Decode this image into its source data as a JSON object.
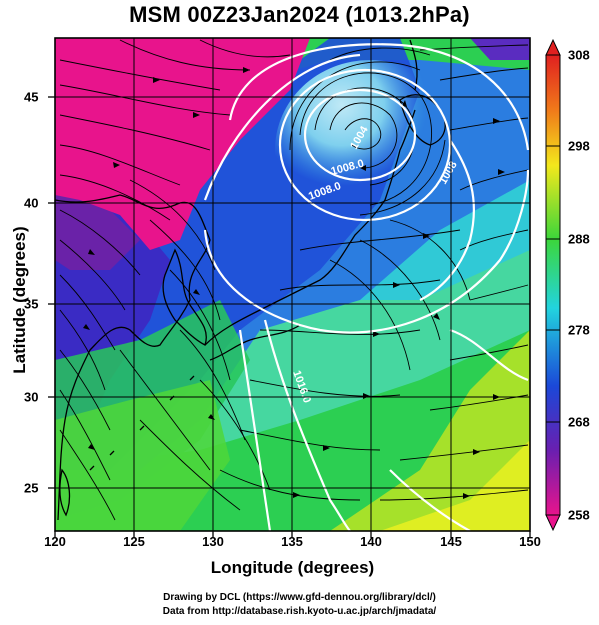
{
  "title": "MSM 00Z23Jan2024 (1013.2hPa)",
  "xlabel": "Longitude (degrees)",
  "ylabel": "Latitude  (degrees)",
  "xticks": [
    "120",
    "125",
    "130",
    "135",
    "140",
    "145",
    "150"
  ],
  "yticks": [
    "25",
    "30",
    "35",
    "40",
    "45"
  ],
  "colorbar_ticks": [
    "308",
    "298",
    "288",
    "278",
    "268",
    "258"
  ],
  "contour_labels": [
    "1008.0",
    "1008.0",
    "1016.0",
    "1004",
    "1008"
  ],
  "credit_line1": "Drawing by DCL (https://www.gfd-dennou.org/library/dcl/)",
  "credit_line2": "Data from http://database.rish.kyoto-u.ac.jp/arch/jmadata/",
  "colors": {
    "cold": "#e8148c",
    "purple": "#7a22a8",
    "blue": "#1b3fd6",
    "cyan": "#23d3e8",
    "green": "#2bd03a",
    "yellow": "#e6f01e",
    "warm": "#f0d400"
  }
}
